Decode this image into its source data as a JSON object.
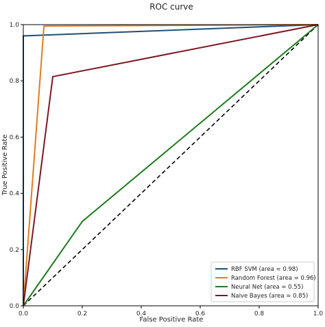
{
  "chart_data": {
    "type": "line",
    "title": "ROC curve",
    "xlabel": "False Positive Rate",
    "ylabel": "True Positive Rate",
    "xlim": [
      0.0,
      1.0
    ],
    "ylim": [
      0.0,
      1.0
    ],
    "xticks": [
      {
        "value": 0.0,
        "label": "0.0"
      },
      {
        "value": 0.2,
        "label": "0.2"
      },
      {
        "value": 0.4,
        "label": "0.4"
      },
      {
        "value": 0.6,
        "label": "0.6"
      },
      {
        "value": 0.8,
        "label": "0.8"
      },
      {
        "value": 1.0,
        "label": "1.0"
      }
    ],
    "yticks": [
      {
        "value": 0.0,
        "label": "0.0"
      },
      {
        "value": 0.2,
        "label": "0.2"
      },
      {
        "value": 0.4,
        "label": "0.4"
      },
      {
        "value": 0.6,
        "label": "0.6"
      },
      {
        "value": 0.8,
        "label": "0.8"
      },
      {
        "value": 1.0,
        "label": "1.0"
      }
    ],
    "grid": false,
    "legend_position": "bottom-right",
    "series": [
      {
        "name": "RBF SVM (area = 0.98)",
        "color": "#1f4e79",
        "x": [
          0.0,
          0.0,
          1.0
        ],
        "y": [
          0.0,
          0.96,
          1.0
        ]
      },
      {
        "name": "Random Forest (area = 0.96)",
        "color": "#e07b1f",
        "x": [
          0.0,
          0.07,
          1.0
        ],
        "y": [
          0.0,
          0.995,
          1.0
        ]
      },
      {
        "name": "Neural Net (area = 0.55)",
        "color": "#1a7a1a",
        "x": [
          0.0,
          0.2,
          1.0
        ],
        "y": [
          0.0,
          0.3,
          1.0
        ]
      },
      {
        "name": "Naive Bayes (area = 0.85)",
        "color": "#7b1620",
        "x": [
          0.0,
          0.1,
          1.0
        ],
        "y": [
          0.0,
          0.815,
          1.0
        ]
      }
    ],
    "reference_line": {
      "style": "dashed",
      "color": "#000000",
      "x": [
        0.0,
        1.0
      ],
      "y": [
        0.0,
        1.0
      ]
    }
  }
}
